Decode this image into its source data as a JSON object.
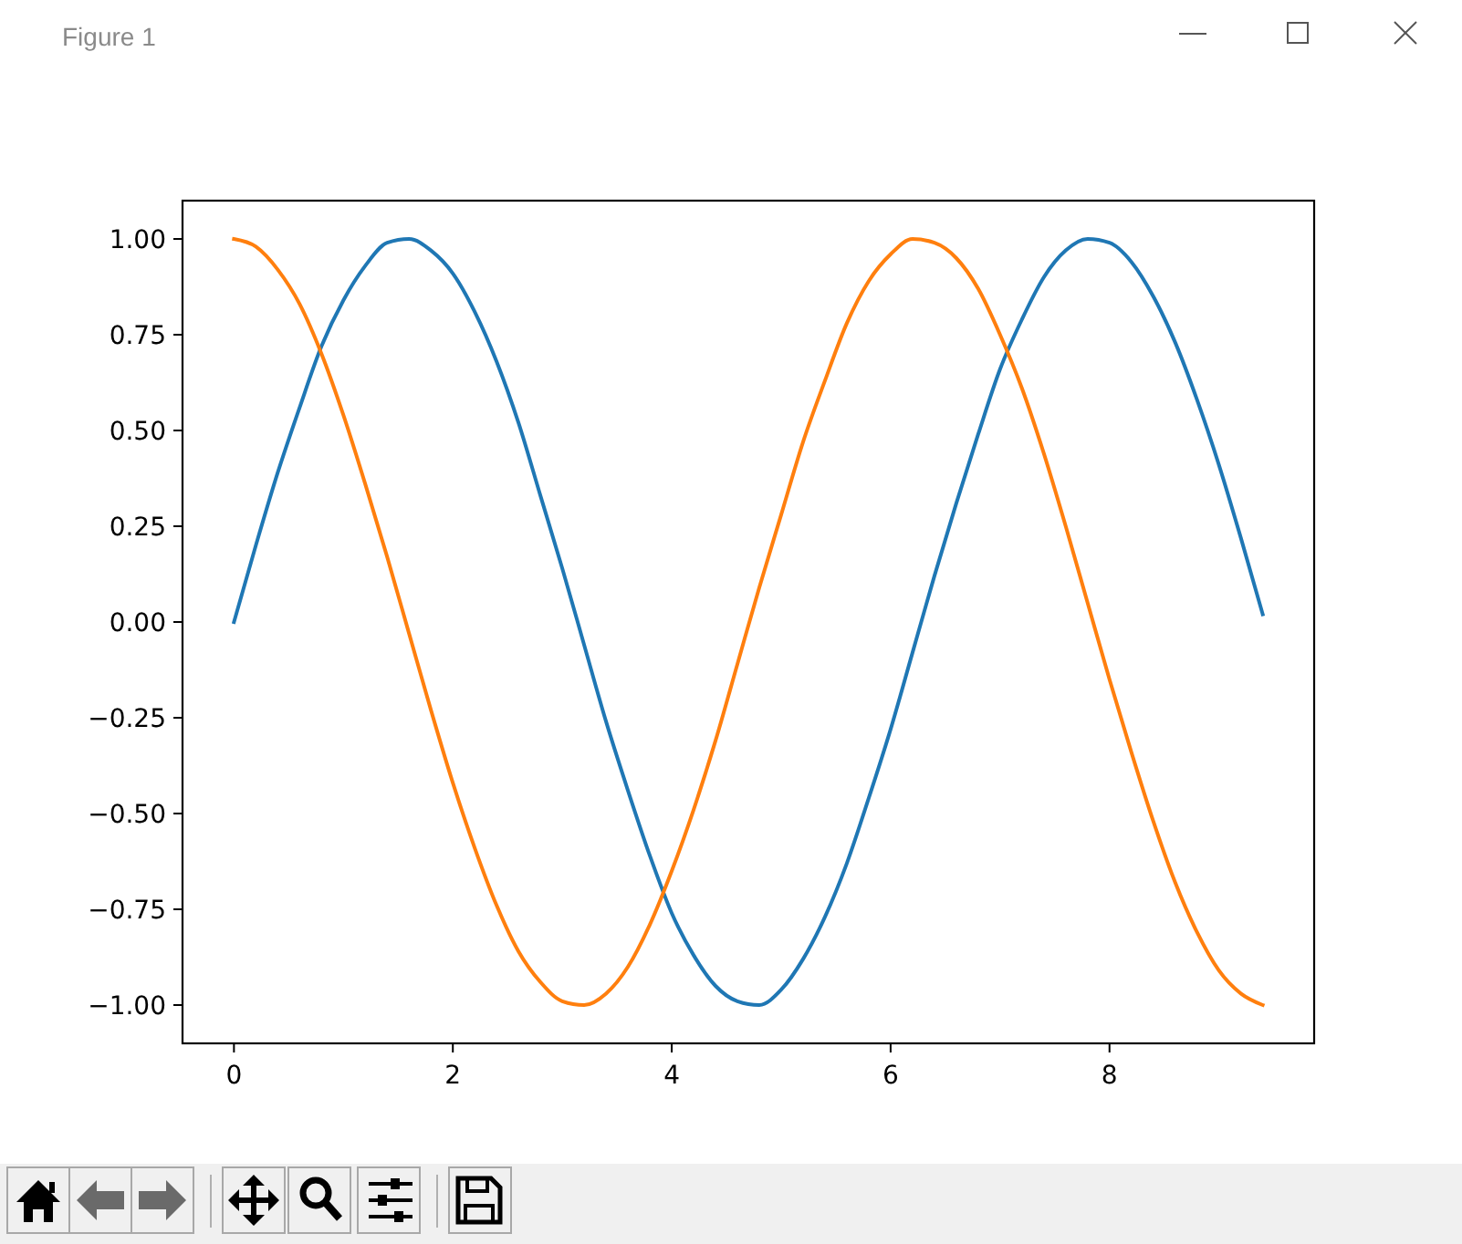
{
  "chart_data": {
    "type": "line",
    "annotations": [
      "Figure 1"
    ],
    "x": [
      0,
      0.2,
      0.4,
      0.6,
      0.8,
      1.0,
      1.2,
      1.4,
      1.6,
      1.8,
      2.0,
      2.2,
      2.4,
      2.6,
      2.8,
      3.0,
      3.2,
      3.4,
      3.6,
      3.8,
      4.0,
      4.2,
      4.4,
      4.6,
      4.8,
      5.0,
      5.2,
      5.4,
      5.6,
      5.8,
      6.0,
      6.2,
      6.4,
      6.6,
      6.8,
      7.0,
      7.2,
      7.4,
      7.6,
      7.8,
      8.0,
      8.2,
      8.4,
      8.6,
      8.8,
      9.0,
      9.2,
      9.4
    ],
    "series": [
      {
        "color": "#1f77b4",
        "values": [
          0.0,
          0.2,
          0.39,
          0.56,
          0.72,
          0.84,
          0.93,
          0.99,
          1.0,
          0.97,
          0.91,
          0.81,
          0.68,
          0.52,
          0.33,
          0.14,
          -0.06,
          -0.26,
          -0.44,
          -0.61,
          -0.76,
          -0.87,
          -0.95,
          -0.99,
          -1.0,
          -0.96,
          -0.88,
          -0.77,
          -0.63,
          -0.46,
          -0.28,
          -0.08,
          0.12,
          0.31,
          0.49,
          0.66,
          0.79,
          0.9,
          0.97,
          1.0,
          0.99,
          0.94,
          0.85,
          0.73,
          0.58,
          0.41,
          0.22,
          0.02
        ]
      },
      {
        "color": "#ff7f0e",
        "values": [
          1.0,
          0.98,
          0.92,
          0.83,
          0.7,
          0.54,
          0.36,
          0.17,
          -0.03,
          -0.23,
          -0.42,
          -0.59,
          -0.74,
          -0.86,
          -0.94,
          -0.99,
          -1.0,
          -0.97,
          -0.9,
          -0.79,
          -0.65,
          -0.49,
          -0.31,
          -0.11,
          0.09,
          0.28,
          0.47,
          0.63,
          0.78,
          0.89,
          0.96,
          1.0,
          0.99,
          0.95,
          0.87,
          0.75,
          0.61,
          0.44,
          0.25,
          0.05,
          -0.15,
          -0.34,
          -0.52,
          -0.68,
          -0.81,
          -0.91,
          -0.97,
          -1.0
        ]
      }
    ],
    "xlim": [
      -0.47,
      9.87
    ],
    "ylim": [
      -1.1,
      1.1
    ],
    "xticks": [
      0,
      2,
      4,
      6,
      8
    ],
    "yticks": [
      {
        "value": -1,
        "label": "−1.00"
      },
      {
        "value": -0.75,
        "label": "−0.75"
      },
      {
        "value": -0.5,
        "label": "−0.50"
      },
      {
        "value": -0.25,
        "label": "−0.25"
      },
      {
        "value": 0,
        "label": "0.00"
      },
      {
        "value": 0.25,
        "label": "0.25"
      },
      {
        "value": 0.5,
        "label": "0.50"
      },
      {
        "value": 0.75,
        "label": "0.75"
      },
      {
        "value": 1,
        "label": "1.00"
      }
    ]
  }
}
